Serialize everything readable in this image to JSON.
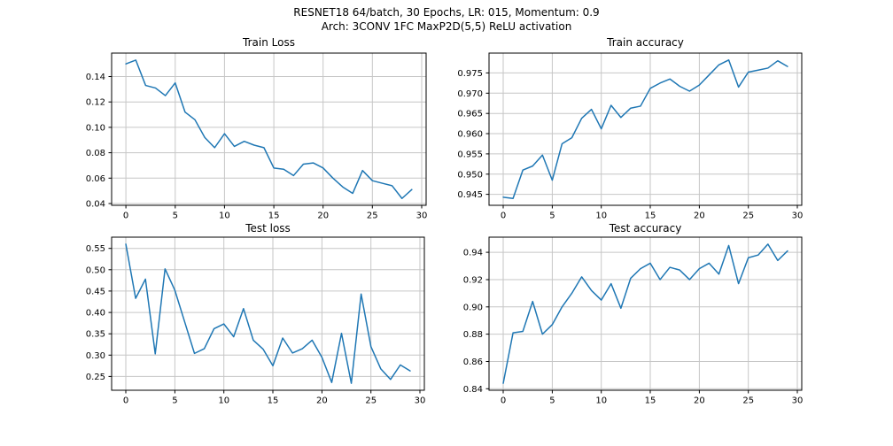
{
  "figure": {
    "suptitle_line1": "RESNET18 64/batch, 30 Epochs, LR: 015, Momentum: 0.9",
    "suptitle_line2": "Arch: 3CONV 1FC MaxP2D(5,5) ReLU activation",
    "background_color": "#ffffff",
    "line_color": "#1f77b4",
    "grid_color": "#c6c6c6",
    "spine_color": "#000000",
    "text_color": "#000000"
  },
  "chart_data": [
    {
      "id": "train-loss",
      "type": "line",
      "title": "Train Loss",
      "xlabel": "",
      "ylabel": "",
      "grid": true,
      "legend": null,
      "x": [
        0,
        1,
        2,
        3,
        4,
        5,
        6,
        7,
        8,
        9,
        10,
        11,
        12,
        13,
        14,
        15,
        16,
        17,
        18,
        19,
        20,
        21,
        22,
        23,
        24,
        25,
        26,
        27,
        28,
        29
      ],
      "values": [
        0.15,
        0.153,
        0.133,
        0.131,
        0.125,
        0.135,
        0.112,
        0.106,
        0.092,
        0.084,
        0.095,
        0.085,
        0.089,
        0.086,
        0.084,
        0.068,
        0.067,
        0.062,
        0.071,
        0.072,
        0.068,
        0.06,
        0.053,
        0.048,
        0.066,
        0.058,
        0.056,
        0.054,
        0.044,
        0.051
      ],
      "xlim": [
        -1.45,
        30.45
      ],
      "ylim": [
        0.0386,
        0.1585
      ],
      "xticks": [
        0,
        5,
        10,
        15,
        20,
        25,
        30
      ],
      "xtick_labels": [
        "0",
        "5",
        "10",
        "15",
        "20",
        "25",
        "30"
      ],
      "yticks": [
        0.04,
        0.06,
        0.08,
        0.1,
        0.12,
        0.14
      ],
      "ytick_labels": [
        "0.04",
        "0.06",
        "0.08",
        "0.10",
        "0.12",
        "0.14"
      ]
    },
    {
      "id": "train-accuracy",
      "type": "line",
      "title": "Train accuracy",
      "xlabel": "",
      "ylabel": "",
      "grid": true,
      "legend": null,
      "x": [
        0,
        1,
        2,
        3,
        4,
        5,
        6,
        7,
        8,
        9,
        10,
        11,
        12,
        13,
        14,
        15,
        16,
        17,
        18,
        19,
        20,
        21,
        22,
        23,
        24,
        25,
        26,
        27,
        28,
        29
      ],
      "values": [
        0.9443,
        0.944,
        0.951,
        0.952,
        0.9547,
        0.9485,
        0.9575,
        0.959,
        0.9638,
        0.966,
        0.9612,
        0.967,
        0.964,
        0.9663,
        0.9668,
        0.9712,
        0.9725,
        0.9735,
        0.9717,
        0.9705,
        0.972,
        0.9745,
        0.977,
        0.9782,
        0.9715,
        0.9752,
        0.9757,
        0.9762,
        0.978,
        0.9766
      ],
      "xlim": [
        -1.45,
        30.45
      ],
      "ylim": [
        0.9423,
        0.9799
      ],
      "xticks": [
        0,
        5,
        10,
        15,
        20,
        25,
        30
      ],
      "xtick_labels": [
        "0",
        "5",
        "10",
        "15",
        "20",
        "25",
        "30"
      ],
      "yticks": [
        0.945,
        0.95,
        0.955,
        0.96,
        0.965,
        0.97,
        0.975
      ],
      "ytick_labels": [
        "0.945",
        "0.950",
        "0.955",
        "0.960",
        "0.965",
        "0.970",
        "0.975"
      ]
    },
    {
      "id": "test-loss",
      "type": "line",
      "title": "Test loss",
      "xlabel": "",
      "ylabel": "",
      "grid": true,
      "legend": null,
      "x": [
        0,
        1,
        2,
        3,
        4,
        5,
        6,
        7,
        8,
        9,
        10,
        11,
        12,
        13,
        14,
        15,
        16,
        17,
        18,
        19,
        20,
        21,
        22,
        23,
        24,
        25,
        26,
        27,
        28,
        29
      ],
      "values": [
        0.56,
        0.433,
        0.478,
        0.303,
        0.502,
        0.452,
        0.378,
        0.304,
        0.315,
        0.362,
        0.373,
        0.343,
        0.409,
        0.335,
        0.314,
        0.275,
        0.34,
        0.305,
        0.315,
        0.335,
        0.295,
        0.236,
        0.351,
        0.234,
        0.443,
        0.32,
        0.268,
        0.243,
        0.277,
        0.263
      ],
      "xlim": [
        -1.45,
        30.45
      ],
      "ylim": [
        0.2177,
        0.5763
      ],
      "xticks": [
        0,
        5,
        10,
        15,
        20,
        25,
        30
      ],
      "xtick_labels": [
        "0",
        "5",
        "10",
        "15",
        "20",
        "25",
        "30"
      ],
      "yticks": [
        0.25,
        0.3,
        0.35,
        0.4,
        0.45,
        0.5,
        0.55
      ],
      "ytick_labels": [
        "0.25",
        "0.30",
        "0.35",
        "0.40",
        "0.45",
        "0.50",
        "0.55"
      ]
    },
    {
      "id": "test-accuracy",
      "type": "line",
      "title": "Test accuracy",
      "xlabel": "",
      "ylabel": "",
      "grid": true,
      "legend": null,
      "x": [
        0,
        1,
        2,
        3,
        4,
        5,
        6,
        7,
        8,
        9,
        10,
        11,
        12,
        13,
        14,
        15,
        16,
        17,
        18,
        19,
        20,
        21,
        22,
        23,
        24,
        25,
        26,
        27,
        28,
        29
      ],
      "values": [
        0.844,
        0.881,
        0.882,
        0.904,
        0.88,
        0.887,
        0.9,
        0.91,
        0.922,
        0.912,
        0.905,
        0.917,
        0.899,
        0.921,
        0.928,
        0.932,
        0.92,
        0.929,
        0.927,
        0.92,
        0.928,
        0.932,
        0.924,
        0.945,
        0.917,
        0.936,
        0.938,
        0.946,
        0.934,
        0.941
      ],
      "xlim": [
        -1.45,
        30.45
      ],
      "ylim": [
        0.8389,
        0.9511
      ],
      "xticks": [
        0,
        5,
        10,
        15,
        20,
        25,
        30
      ],
      "xtick_labels": [
        "0",
        "5",
        "10",
        "15",
        "20",
        "25",
        "30"
      ],
      "yticks": [
        0.84,
        0.86,
        0.88,
        0.9,
        0.92,
        0.94
      ],
      "ytick_labels": [
        "0.84",
        "0.86",
        "0.88",
        "0.90",
        "0.92",
        "0.94"
      ]
    }
  ]
}
